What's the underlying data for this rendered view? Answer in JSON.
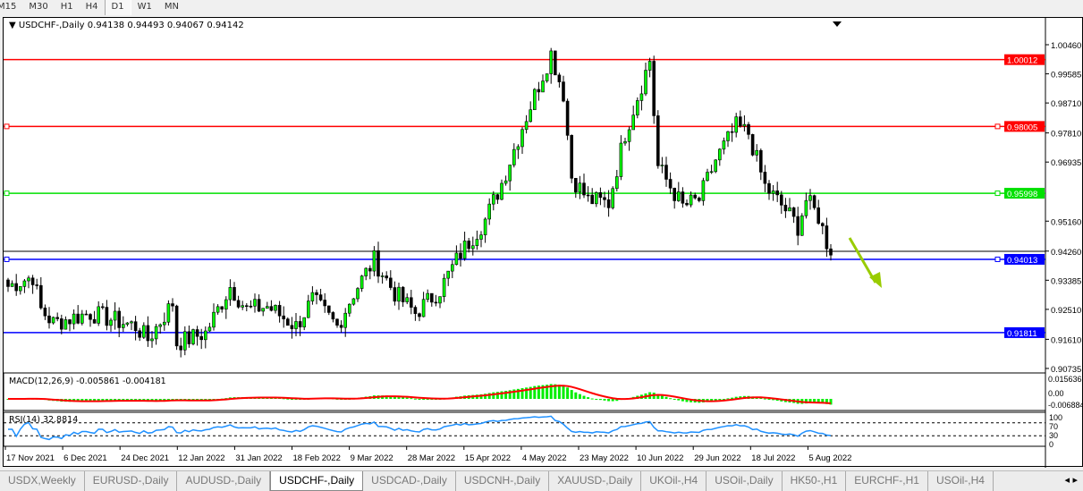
{
  "timeframes": [
    "M15",
    "M30",
    "H1",
    "H4",
    "D1",
    "W1",
    "MN"
  ],
  "active_timeframe": "D1",
  "chart": {
    "title": "USDCHF-,Daily",
    "ohlc": "0.94138 0.94493 0.94067 0.94142"
  },
  "macd": {
    "label": "MACD(12,26,9) -0.005861 -0.004181",
    "scale": [
      "0.015636",
      "0.00",
      "-0.006884"
    ]
  },
  "rsi": {
    "label": "RSI(14) 32.8814",
    "scale": [
      "100",
      "70",
      "30",
      "0"
    ]
  },
  "tabs": [
    "USDX,Weekly",
    "EURUSD-,Daily",
    "AUDUSD-,Daily",
    "USDCHF-,Daily",
    "USDCAD-,Daily",
    "USDCNH-,Daily",
    "XAUUSD-,Daily",
    "UKOil-,H4",
    "USOil-,Daily",
    "HK50-,H1",
    "EURCHF-,H1",
    "USOil-,H4"
  ],
  "active_tab": "USDCHF-,Daily",
  "colors": {
    "bull": "#00ff00",
    "bear": "#000000",
    "resistance": "#ff0000",
    "support_green": "#00e000",
    "support_blue": "#0000ff",
    "macd_signal": "#ff0000",
    "rsi": "#1e90ff",
    "arrow": "#99cc00"
  },
  "chart_data": {
    "type": "candlestick",
    "price_axis": [
      "1.00460",
      "0.99585",
      "0.98710",
      "0.97810",
      "0.96935",
      "0.95160",
      "0.94260",
      "0.93385",
      "0.92510",
      "0.91610",
      "0.90735"
    ],
    "date_axis": [
      "17 Nov 2021",
      "6 Dec 2021",
      "24 Dec 2021",
      "12 Jan 2022",
      "31 Jan 2022",
      "18 Feb 2022",
      "9 Mar 2022",
      "28 Mar 2022",
      "15 Apr 2022",
      "4 May 2022",
      "23 May 2022",
      "10 Jun 2022",
      "29 Jun 2022",
      "18 Jul 2022",
      "5 Aug 2022"
    ],
    "horizontal_lines": [
      {
        "price": "1.00012",
        "color": "red"
      },
      {
        "price": "0.98005",
        "color": "red"
      },
      {
        "price": "0.95998",
        "color": "green"
      },
      {
        "price": "0.94013",
        "color": "blue"
      },
      {
        "price": "0.91811",
        "color": "blue"
      }
    ],
    "approx_close_path": [
      [
        0,
        0.932
      ],
      [
        6,
        0.935
      ],
      [
        8,
        0.925
      ],
      [
        11,
        0.921
      ],
      [
        20,
        0.924
      ],
      [
        31,
        0.92
      ],
      [
        34,
        0.916
      ],
      [
        40,
        0.927
      ],
      [
        41,
        0.915
      ],
      [
        48,
        0.918
      ],
      [
        54,
        0.932
      ],
      [
        58,
        0.925
      ],
      [
        63,
        0.926
      ],
      [
        70,
        0.92
      ],
      [
        74,
        0.928
      ],
      [
        80,
        0.92
      ],
      [
        84,
        0.93
      ],
      [
        89,
        0.94
      ],
      [
        94,
        0.93
      ],
      [
        99,
        0.924
      ],
      [
        105,
        0.931
      ],
      [
        110,
        0.942
      ],
      [
        116,
        0.952
      ],
      [
        120,
        0.963
      ],
      [
        125,
        0.98
      ],
      [
        132,
        1.002
      ],
      [
        135,
        0.99
      ],
      [
        137,
        0.965
      ],
      [
        141,
        0.958
      ],
      [
        146,
        0.957
      ],
      [
        150,
        0.978
      ],
      [
        156,
        1.0
      ],
      [
        158,
        0.968
      ],
      [
        164,
        0.956
      ],
      [
        168,
        0.958
      ],
      [
        172,
        0.97
      ],
      [
        177,
        0.98
      ],
      [
        180,
        0.978
      ],
      [
        184,
        0.962
      ],
      [
        189,
        0.955
      ],
      [
        192,
        0.95
      ],
      [
        194,
        0.958
      ],
      [
        197,
        0.953
      ],
      [
        200,
        0.9414
      ]
    ],
    "last_close": "0.94142"
  }
}
